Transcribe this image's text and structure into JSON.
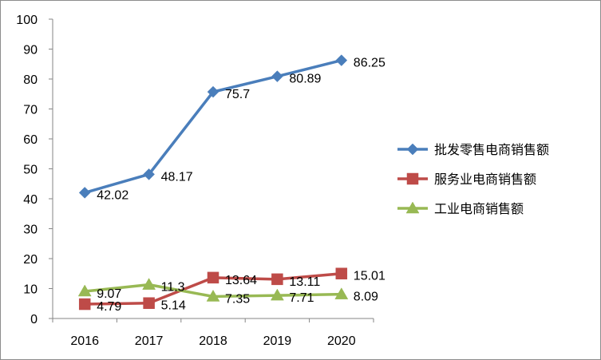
{
  "chart_data": {
    "type": "line",
    "categories": [
      "2016",
      "2017",
      "2018",
      "2019",
      "2020"
    ],
    "ylim": [
      0,
      100
    ],
    "yticks": [
      0,
      10,
      20,
      30,
      40,
      50,
      60,
      70,
      80,
      90,
      100
    ],
    "grid": false,
    "legend_position": "right",
    "series": [
      {
        "name": "批发零售电商销售额",
        "values": [
          42.02,
          48.17,
          75.7,
          80.89,
          86.25
        ],
        "labels": [
          "42.02",
          "48.17",
          "75.7",
          "80.89",
          "86.25"
        ],
        "color": "#4a7ebb",
        "marker": "diamond"
      },
      {
        "name": "服务业电商销售额",
        "values": [
          4.79,
          5.14,
          13.64,
          13.11,
          15.01
        ],
        "labels": [
          "4.79",
          "5.14",
          "13.64",
          "13.11",
          "15.01"
        ],
        "color": "#be4b48",
        "marker": "square"
      },
      {
        "name": "工业电商销售额",
        "values": [
          9.07,
          11.3,
          7.35,
          7.71,
          8.09
        ],
        "labels": [
          "9.07",
          "11.3",
          "7.35",
          "7.71",
          "8.09"
        ],
        "color": "#98b954",
        "marker": "triangle"
      }
    ]
  }
}
